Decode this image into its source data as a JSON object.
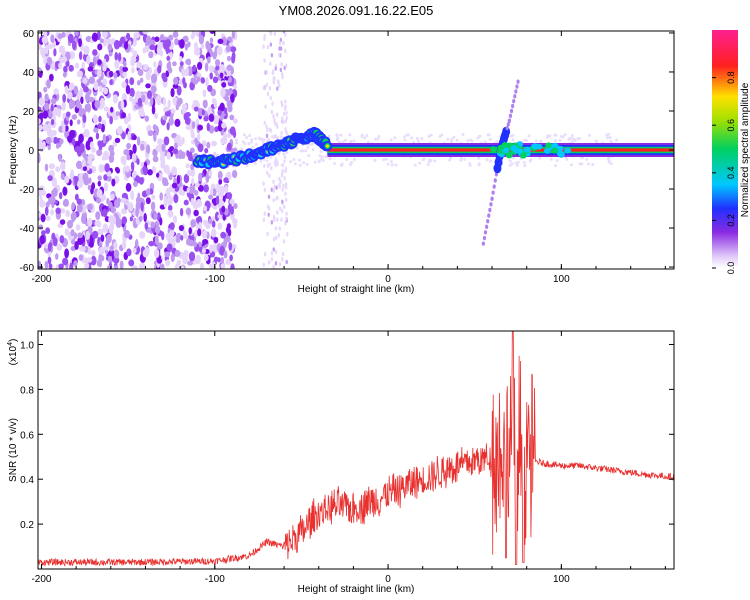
{
  "figure": {
    "title": "YM08.2026.091.16.22.E05"
  },
  "chart_data": [
    {
      "type": "heatmap",
      "name": "spectrogram",
      "xlabel": "Height of straight line (km)",
      "ylabel": "Frequency (Hz)",
      "xlim": [
        -202,
        165
      ],
      "ylim": [
        -61,
        61
      ],
      "xticks": [
        -200,
        -100,
        0,
        100
      ],
      "yticks": [
        -60,
        -40,
        -20,
        0,
        20,
        40,
        60
      ],
      "signal_band": {
        "frequency": 0,
        "noise_region_km": [
          -202,
          -88
        ],
        "main_ridge": [
          {
            "x": -110,
            "y": -6
          },
          {
            "x": -95,
            "y": -6
          },
          {
            "x": -80,
            "y": -3
          },
          {
            "x": -70,
            "y": 0
          },
          {
            "x": -60,
            "y": 3
          },
          {
            "x": -50,
            "y": 6
          },
          {
            "x": -42,
            "y": 8
          },
          {
            "x": -35,
            "y": 2
          }
        ],
        "secondary_line": [
          {
            "x": 55,
            "y": -48
          },
          {
            "x": 60,
            "y": -25
          },
          {
            "x": 65,
            "y": 0
          },
          {
            "x": 70,
            "y": 15
          },
          {
            "x": 75,
            "y": 35
          }
        ],
        "flat_trace_km": [
          -35,
          165
        ]
      },
      "colorbar": {
        "label": "Normalized spectral amplitude",
        "ticks": [
          "0.0",
          "0.2",
          "0.4",
          "0.6",
          "0.8"
        ],
        "range": [
          0,
          1
        ]
      }
    },
    {
      "type": "line",
      "name": "snr",
      "xlabel": "Height of straight line (km)",
      "ylabel": "SNR (10 * v/v)",
      "yscale_label": "(x10",
      "yscale_exp": "4",
      "yscale_close": ")",
      "xlim": [
        -202,
        165
      ],
      "ylim": [
        0,
        1.06
      ],
      "xticks": [
        -200,
        -100,
        0,
        100
      ],
      "yticks": [
        "0.2",
        "0.4",
        "0.6",
        "0.8",
        "1.0"
      ],
      "ytick_values": [
        0.2,
        0.4,
        0.6,
        0.8,
        1.0
      ],
      "color": "#e8302e",
      "series": [
        {
          "name": "SNR",
          "points": [
            {
              "x": -202,
              "y": 0.03
            },
            {
              "x": -150,
              "y": 0.03
            },
            {
              "x": -100,
              "y": 0.035
            },
            {
              "x": -80,
              "y": 0.06
            },
            {
              "x": -70,
              "y": 0.12
            },
            {
              "x": -60,
              "y": 0.1
            },
            {
              "x": -50,
              "y": 0.16
            },
            {
              "x": -40,
              "y": 0.25
            },
            {
              "x": -30,
              "y": 0.28
            },
            {
              "x": -20,
              "y": 0.27
            },
            {
              "x": -10,
              "y": 0.3
            },
            {
              "x": 0,
              "y": 0.33
            },
            {
              "x": 10,
              "y": 0.37
            },
            {
              "x": 20,
              "y": 0.4
            },
            {
              "x": 30,
              "y": 0.43
            },
            {
              "x": 40,
              "y": 0.46
            },
            {
              "x": 50,
              "y": 0.48
            },
            {
              "x": 60,
              "y": 0.5
            },
            {
              "x": 65,
              "y": 0.52
            },
            {
              "x": 70,
              "y": 0.55
            },
            {
              "x": 75,
              "y": 0.5
            },
            {
              "x": 80,
              "y": 0.55
            },
            {
              "x": 85,
              "y": 0.48
            },
            {
              "x": 90,
              "y": 0.47
            },
            {
              "x": 100,
              "y": 0.46
            },
            {
              "x": 110,
              "y": 0.46
            },
            {
              "x": 120,
              "y": 0.45
            },
            {
              "x": 130,
              "y": 0.44
            },
            {
              "x": 140,
              "y": 0.43
            },
            {
              "x": 150,
              "y": 0.42
            },
            {
              "x": 165,
              "y": 0.41
            }
          ]
        }
      ],
      "peak": {
        "x": 72,
        "y": 1.06
      },
      "dips": [
        {
          "x": 68,
          "y": 0.05
        },
        {
          "x": 74,
          "y": 0.02
        },
        {
          "x": 78,
          "y": 0.03
        }
      ]
    }
  ]
}
